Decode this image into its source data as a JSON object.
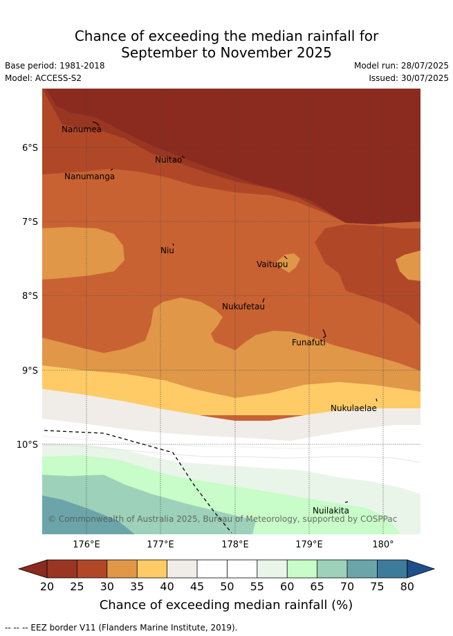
{
  "title_line1": "Chance of exceeding the median rainfall for",
  "title_line2": "September to November 2025",
  "base_period": "Base period: 1981-2018",
  "model": "Model: ACCESS-S2",
  "model_run": "Model run: 28/07/2025",
  "issued": "Issued: 30/07/2025",
  "places": [
    "Nanumea",
    "Nuitao",
    "Nanumanga",
    "Niu",
    "Vaitupu",
    "Nukufetau",
    "Funafuti",
    "Nukulaelae",
    "Nuilakita"
  ],
  "copyright": "© Commonwealth of Australia 2025, Bureau of Meteorology, supported by COSPPac",
  "lat_ticks": [
    "6°S",
    "7°S",
    "8°S",
    "9°S",
    "10°S"
  ],
  "lon_ticks": [
    "176°E",
    "177°E",
    "178°E",
    "179°E",
    "180°"
  ],
  "colorbar_ticks": [
    "20",
    "25",
    "30",
    "35",
    "40",
    "45",
    "50",
    "55",
    "60",
    "65",
    "70",
    "75",
    "80"
  ],
  "colorbar_label": "Chance of exceeding median rainfall (%)",
  "legend_eez": "-- -- -- EEZ border V11 (Flanders Marine Institute, 2019).",
  "colors": {
    "c15_20": "#8b2a1e",
    "c20_25": "#993622",
    "c25_30": "#b04828",
    "c30_35": "#c96233",
    "c35_40": "#e09748",
    "c40_45": "#fecb66",
    "c45_50": "#f0ede8",
    "c50_55": "#ffffff",
    "c55_60": "#ffffff",
    "c60_65": "#e9f5e9",
    "c65_70": "#c8fcc8",
    "c70_75": "#9dd1b9",
    "c75_80": "#6ba5a9",
    "c80_85": "#3d7b9d",
    "c85_up": "#1f4f8a"
  }
}
